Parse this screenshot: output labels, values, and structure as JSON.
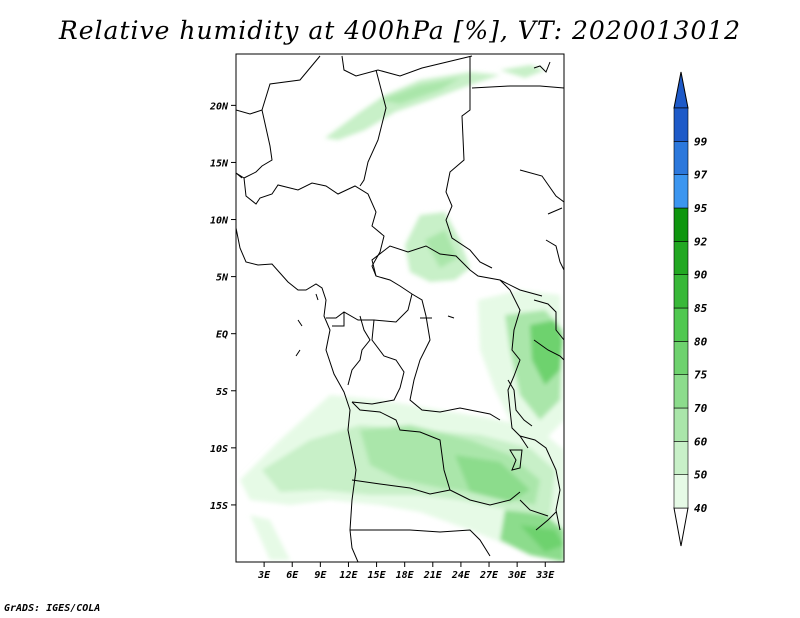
{
  "title": "Relative humidity at 400hPa [%], VT: 2020013012",
  "footer": "GrADS: IGES/COLA",
  "map": {
    "lat_labels": [
      "20N",
      "15N",
      "10N",
      "5N",
      "EQ",
      "5S",
      "10S",
      "15S"
    ],
    "lon_labels": [
      "3E",
      "6E",
      "9E",
      "12E",
      "15E",
      "18E",
      "21E",
      "24E",
      "27E",
      "30E",
      "33E"
    ],
    "lat_range": [
      -20,
      24.5
    ],
    "lon_range": [
      0,
      35
    ]
  },
  "colorbar": {
    "colors": [
      "#ffffff",
      "#e6fae6",
      "#c8f0c8",
      "#aae6aa",
      "#8cdc8c",
      "#6ed26e",
      "#50c850",
      "#38b838",
      "#22a822",
      "#0e960e",
      "#3c96f0",
      "#2c78dc",
      "#1e5ac8"
    ],
    "labels": [
      "40",
      "50",
      "60",
      "70",
      "75",
      "80",
      "85",
      "90",
      "92",
      "95",
      "97",
      "99"
    ],
    "arrow_bottom_color": "#ffffff",
    "arrow_top_color": "#1e5ac8"
  }
}
